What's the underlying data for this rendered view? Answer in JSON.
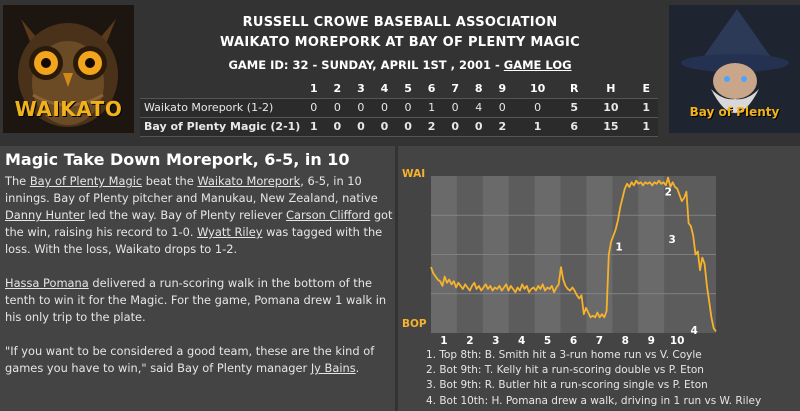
{
  "header": {
    "association": "RUSSELL CROWE BASEBALL ASSOCIATION",
    "matchup": "WAIKATO MOREPORK AT BAY OF PLENTY MAGIC",
    "game_info": "GAME ID: 32 - SUNDAY, APRIL 1ST , 2001 - ",
    "game_log_link": "GAME LOG",
    "left_logo_text": "WAIKATO",
    "right_logo_text": "Bay of Plenty"
  },
  "linescore": {
    "columns": [
      "1",
      "2",
      "3",
      "4",
      "5",
      "6",
      "7",
      "8",
      "9",
      "10",
      "R",
      "H",
      "E"
    ],
    "teams": [
      {
        "name": "Waikato Morepork (1-2)",
        "cells": [
          "0",
          "0",
          "0",
          "0",
          "0",
          "1",
          "0",
          "4",
          "0",
          "0",
          "5",
          "10",
          "1"
        ]
      },
      {
        "name": "Bay of Plenty Magic (2-1)",
        "cells": [
          "1",
          "0",
          "0",
          "0",
          "0",
          "2",
          "0",
          "0",
          "2",
          "1",
          "6",
          "15",
          "1"
        ]
      }
    ]
  },
  "recap": {
    "headline": "Magic Take Down Morepork, 6-5, in 10",
    "p1": {
      "t0": "The ",
      "l1": "Bay of Plenty Magic",
      "t1": " beat the ",
      "l2": "Waikato Morepork",
      "t2": ", 6-5, in 10 innings. Bay of Plenty pitcher and Manukau, New Zealand, native ",
      "l3": "Danny Hunter",
      "t3": " led the way. Bay of Plenty reliever ",
      "l4": "Carson Clifford",
      "t4": " got the win, raising his record to 1-0. ",
      "l5": "Wyatt Riley",
      "t5": " was tagged with the loss. With the loss, Waikato drops to 1-2."
    },
    "p2": {
      "l1": "Hassa Pomana",
      "t1": " delivered a run-scoring walk in the bottom of the tenth to win it for the Magic. For the game, Pomana drew 1 walk in his only trip to the plate."
    },
    "p3": {
      "t1": "\"If you want to be considered a good team, these are the kind of games you have to win,\" said Bay of Plenty manager ",
      "l1": "Jy Bains",
      "t2": "."
    }
  },
  "win_probability": {
    "top_label": "WAI",
    "bottom_label": "BOP",
    "innings": [
      "1",
      "2",
      "3",
      "4",
      "5",
      "6",
      "7",
      "8",
      "9",
      "10"
    ],
    "line_color": "#f6b22c",
    "key_markers": [
      {
        "label": "1",
        "inning": 8,
        "value": 0.55
      },
      {
        "label": "2",
        "inning": 9.9,
        "value": 0.9
      },
      {
        "label": "3",
        "inning": 10.05,
        "value": 0.6
      },
      {
        "label": "4",
        "inning": 10.9,
        "value": 0.02
      }
    ],
    "series": [
      0.42,
      0.38,
      0.36,
      0.34,
      0.33,
      0.3,
      0.36,
      0.32,
      0.34,
      0.31,
      0.33,
      0.29,
      0.32,
      0.3,
      0.28,
      0.31,
      0.29,
      0.27,
      0.3,
      0.32,
      0.28,
      0.3,
      0.27,
      0.29,
      0.31,
      0.28,
      0.3,
      0.27,
      0.29,
      0.28,
      0.3,
      0.27,
      0.29,
      0.31,
      0.27,
      0.3,
      0.28,
      0.26,
      0.29,
      0.27,
      0.31,
      0.28,
      0.3,
      0.26,
      0.28,
      0.29,
      0.27,
      0.3,
      0.28,
      0.31,
      0.27,
      0.29,
      0.28,
      0.3,
      0.26,
      0.29,
      0.31,
      0.42,
      0.34,
      0.3,
      0.28,
      0.27,
      0.29,
      0.27,
      0.24,
      0.22,
      0.24,
      0.12,
      0.16,
      0.13,
      0.1,
      0.11,
      0.1,
      0.13,
      0.1,
      0.12,
      0.1,
      0.14,
      0.5,
      0.58,
      0.62,
      0.66,
      0.72,
      0.8,
      0.86,
      0.92,
      0.95,
      0.93,
      0.96,
      0.94,
      0.97,
      0.95,
      0.96,
      0.94,
      0.96,
      0.95,
      0.96,
      0.94,
      0.96,
      0.95,
      0.97,
      0.95,
      0.96,
      0.94,
      0.99,
      0.93,
      0.96,
      0.93,
      0.92,
      0.88,
      0.84,
      0.86,
      0.9,
      0.7,
      0.68,
      0.62,
      0.5,
      0.52,
      0.4,
      0.48,
      0.44,
      0.3,
      0.2,
      0.1,
      0.03,
      0.01
    ],
    "events": [
      "1. Top 8th: B. Smith hit a 3-run home run vs V. Coyle",
      "2. Bot 9th: T. Kelly hit a run-scoring double vs P. Eton",
      "3. Bot 9th: R. Butler hit a run-scoring single vs P. Eton",
      "4. Bot 10th: H. Pomana drew a walk, driving in 1 run vs W. Riley"
    ]
  }
}
